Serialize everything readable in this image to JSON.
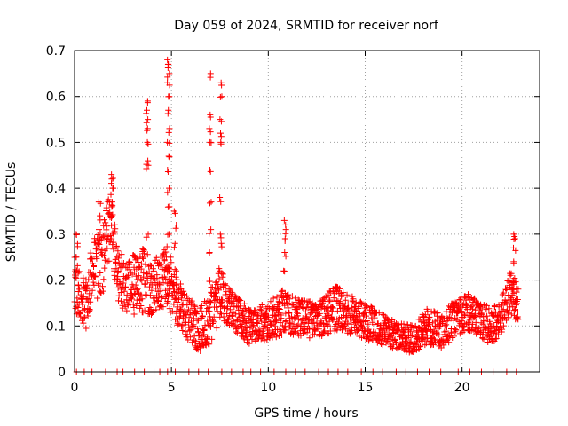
{
  "chart_data": {
    "type": "scatter",
    "title": "Day 059 of 2024, SRMTID for receiver norf",
    "xlabel": "GPS time / hours",
    "ylabel": "SRMTID / TECUs",
    "xlim": [
      0,
      24
    ],
    "ylim": [
      0,
      0.7
    ],
    "xticks": [
      0,
      5,
      10,
      15,
      20
    ],
    "yticks": [
      0,
      0.1,
      0.2,
      0.3,
      0.4,
      0.5,
      0.6,
      0.7
    ],
    "grid": true,
    "marker": "+",
    "color": "#ff0000",
    "profile": [
      [
        0.0,
        0.18,
        0.07
      ],
      [
        0.5,
        0.14,
        0.06
      ],
      [
        1.0,
        0.22,
        0.07
      ],
      [
        1.5,
        0.25,
        0.08
      ],
      [
        1.9,
        0.34,
        0.07
      ],
      [
        2.2,
        0.21,
        0.06
      ],
      [
        2.7,
        0.19,
        0.06
      ],
      [
        3.3,
        0.19,
        0.07
      ],
      [
        3.6,
        0.21,
        0.08
      ],
      [
        4.0,
        0.18,
        0.06
      ],
      [
        4.4,
        0.2,
        0.06
      ],
      [
        4.8,
        0.21,
        0.07
      ],
      [
        5.2,
        0.17,
        0.06
      ],
      [
        5.6,
        0.13,
        0.05
      ],
      [
        6.0,
        0.11,
        0.05
      ],
      [
        6.5,
        0.09,
        0.05
      ],
      [
        7.0,
        0.12,
        0.06
      ],
      [
        7.5,
        0.17,
        0.06
      ],
      [
        8.0,
        0.14,
        0.04
      ],
      [
        9.0,
        0.1,
        0.04
      ],
      [
        10.0,
        0.11,
        0.04
      ],
      [
        10.7,
        0.13,
        0.05
      ],
      [
        11.5,
        0.12,
        0.04
      ],
      [
        12.5,
        0.11,
        0.04
      ],
      [
        13.5,
        0.14,
        0.05
      ],
      [
        14.5,
        0.12,
        0.04
      ],
      [
        15.5,
        0.1,
        0.04
      ],
      [
        16.5,
        0.08,
        0.03
      ],
      [
        17.5,
        0.07,
        0.03
      ],
      [
        18.2,
        0.1,
        0.04
      ],
      [
        19.0,
        0.09,
        0.04
      ],
      [
        19.7,
        0.12,
        0.04
      ],
      [
        20.3,
        0.13,
        0.04
      ],
      [
        21.0,
        0.11,
        0.04
      ],
      [
        21.5,
        0.1,
        0.04
      ],
      [
        22.0,
        0.12,
        0.04
      ],
      [
        22.5,
        0.17,
        0.05
      ],
      [
        22.9,
        0.15,
        0.04
      ]
    ],
    "spikes": [
      {
        "t": 3.75,
        "y": [
          0.3,
          0.45,
          0.46,
          0.5,
          0.53,
          0.55,
          0.57,
          0.59
        ]
      },
      {
        "t": 4.85,
        "y": [
          0.18,
          0.22,
          0.3,
          0.36,
          0.4,
          0.44,
          0.47,
          0.5,
          0.53,
          0.57,
          0.6,
          0.63,
          0.65,
          0.67,
          0.68
        ]
      },
      {
        "t": 5.2,
        "y": [
          0.22,
          0.28,
          0.32,
          0.35
        ]
      },
      {
        "t": 7.0,
        "y": [
          0.2,
          0.26,
          0.31,
          0.37,
          0.44,
          0.5,
          0.53,
          0.56,
          0.65
        ]
      },
      {
        "t": 7.55,
        "y": [
          0.22,
          0.28,
          0.3,
          0.38,
          0.5,
          0.52,
          0.55,
          0.6,
          0.63
        ]
      },
      {
        "t": 1.95,
        "y": [
          0.3,
          0.34,
          0.37,
          0.4,
          0.42,
          0.43
        ]
      },
      {
        "t": 1.3,
        "y": [
          0.29,
          0.31,
          0.34,
          0.37
        ]
      },
      {
        "t": 10.85,
        "y": [
          0.22,
          0.26,
          0.29,
          0.31,
          0.33
        ]
      },
      {
        "t": 22.7,
        "y": [
          0.2,
          0.24,
          0.27,
          0.29,
          0.3
        ]
      },
      {
        "t": 0.1,
        "y": [
          0.25,
          0.28,
          0.3
        ]
      }
    ],
    "zero_markers": [
      0.1,
      0.5,
      0.9,
      1.6,
      2.2,
      2.5,
      3.1,
      3.6,
      4.1,
      4.4,
      4.8,
      5.2,
      5.9,
      6.4,
      6.9,
      7.6,
      8.1,
      8.7,
      9.1,
      9.6,
      10.3,
      10.9,
      11.4,
      11.9,
      12.6,
      13.1,
      13.6,
      14.1,
      14.8,
      15.4,
      15.9,
      16.6,
      17.1,
      17.7,
      18.3,
      18.9,
      19.8,
      20.4,
      21.0,
      21.6,
      22.3,
      22.8
    ]
  }
}
